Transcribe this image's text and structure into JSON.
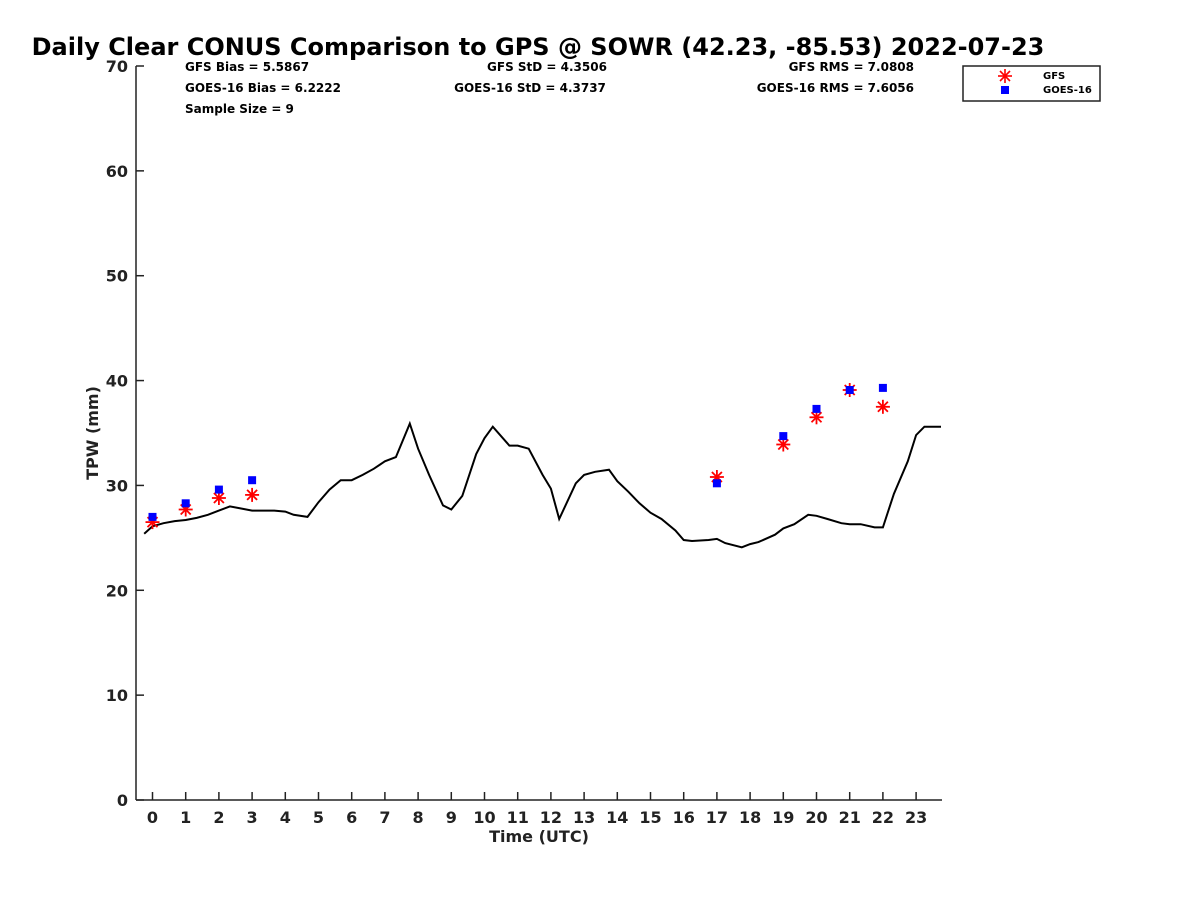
{
  "chart_data": {
    "type": "line+scatter",
    "title": "Daily Clear CONUS Comparison to GPS @ SOWR (42.23, -85.53) 2022-07-23",
    "xlabel": "Time (UTC)",
    "ylabel": "TPW (mm)",
    "xlim": [
      -0.5,
      23.7
    ],
    "ylim": [
      0,
      70
    ],
    "xticks": [
      0,
      1,
      2,
      3,
      4,
      5,
      6,
      7,
      8,
      9,
      10,
      11,
      12,
      13,
      14,
      15,
      16,
      17,
      18,
      19,
      20,
      21,
      22,
      23
    ],
    "yticks": [
      0,
      10,
      20,
      30,
      40,
      50,
      60,
      70
    ],
    "stats": {
      "gfs_bias": "GFS Bias = 5.5867",
      "goes_bias": "GOES-16 Bias = 6.2222",
      "sample_size": "Sample Size = 9",
      "gfs_std": "GFS StD = 4.3506",
      "goes_std": "GOES-16 StD = 4.3737",
      "gfs_rms": "GFS RMS = 7.0808",
      "goes_rms": "GOES-16 RMS = 7.6056"
    },
    "legend": {
      "position": "top-right outside",
      "entries": [
        {
          "label": "GFS",
          "marker": "asterisk",
          "color": "#ff0000"
        },
        {
          "label": "GOES-16",
          "marker": "square",
          "color": "#0000ff"
        }
      ]
    },
    "series": [
      {
        "name": "GPS",
        "type": "line",
        "color": "#000000",
        "x": [
          -0.25,
          0,
          0.33,
          0.67,
          1,
          1.33,
          1.67,
          2,
          2.33,
          2.67,
          3,
          3.33,
          3.67,
          4,
          4.25,
          4.67,
          5,
          5.33,
          5.67,
          6,
          6.33,
          6.67,
          7,
          7.33,
          7.75,
          8,
          8.33,
          8.75,
          9,
          9.33,
          9.75,
          10,
          10.25,
          10.75,
          11,
          11.33,
          11.75,
          12,
          12.25,
          12.75,
          13,
          13.33,
          13.75,
          14,
          14.33,
          14.67,
          15,
          15.33,
          15.75,
          16,
          16.25,
          16.75,
          17,
          17.25,
          17.75,
          18,
          18.25,
          18.75,
          19,
          19.33,
          19.75,
          20,
          20.33,
          20.75,
          21,
          21.33,
          21.75,
          22,
          22.33,
          22.75,
          23,
          23.25,
          23.75
        ],
        "y": [
          25.4,
          26.1,
          26.4,
          26.6,
          26.7,
          26.9,
          27.2,
          27.6,
          28.0,
          27.8,
          27.6,
          27.6,
          27.6,
          27.5,
          27.2,
          27.0,
          28.4,
          29.6,
          30.5,
          30.5,
          31.0,
          31.6,
          32.3,
          32.7,
          35.9,
          33.5,
          31.0,
          28.1,
          27.7,
          29.0,
          33.0,
          34.5,
          35.6,
          33.8,
          33.8,
          33.5,
          31.0,
          29.7,
          26.8,
          30.2,
          31.0,
          31.3,
          31.5,
          30.4,
          29.4,
          28.3,
          27.4,
          26.8,
          25.7,
          24.8,
          24.7,
          24.8,
          24.9,
          24.5,
          24.1,
          24.4,
          24.6,
          25.3,
          25.9,
          26.3,
          27.2,
          27.1,
          26.8,
          26.4,
          26.3,
          26.3,
          26.0,
          26.0,
          29.2,
          32.3,
          34.8,
          35.6,
          35.6
        ],
        "note": "reference line"
      },
      {
        "name": "GFS",
        "type": "scatter",
        "marker": "asterisk",
        "color": "#ff0000",
        "x": [
          0,
          1,
          2,
          3,
          17,
          19,
          20,
          21,
          22
        ],
        "y": [
          26.5,
          27.7,
          28.8,
          29.1,
          30.8,
          33.9,
          36.5,
          39.1,
          37.5
        ]
      },
      {
        "name": "GOES-16",
        "type": "scatter",
        "marker": "square",
        "color": "#0000ff",
        "x": [
          0,
          1,
          2,
          3,
          17,
          19,
          20,
          21,
          22
        ],
        "y": [
          27.0,
          28.3,
          29.6,
          30.5,
          30.2,
          34.7,
          37.3,
          39.1,
          39.3
        ]
      }
    ]
  }
}
